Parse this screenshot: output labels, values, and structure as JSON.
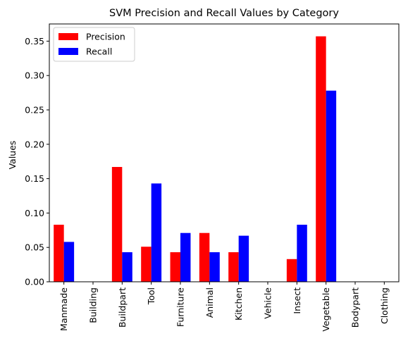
{
  "chart_data": {
    "type": "bar",
    "title": "SVM Precision and Recall Values by Category",
    "xlabel": "",
    "ylabel": "Values",
    "categories": [
      "Manmade",
      "Building",
      "Buildpart",
      "Tool",
      "Furniture",
      "Animal",
      "Kitchen",
      "Vehicle",
      "Insect",
      "Vegetable",
      "Bodypart",
      "Clothing"
    ],
    "series": [
      {
        "name": "Precision",
        "color": "#ff0000",
        "values": [
          0.083,
          0.0,
          0.167,
          0.051,
          0.043,
          0.071,
          0.043,
          0.0,
          0.033,
          0.357,
          0.0,
          0.0
        ]
      },
      {
        "name": "Recall",
        "color": "#0000ff",
        "values": [
          0.058,
          0.0,
          0.043,
          0.143,
          0.071,
          0.043,
          0.067,
          0.0,
          0.083,
          0.278,
          0.0,
          0.0
        ]
      }
    ],
    "ylim": [
      0,
      0.375
    ],
    "yticks": [
      "0.00",
      "0.05",
      "0.10",
      "0.15",
      "0.20",
      "0.25",
      "0.30",
      "0.35"
    ],
    "legend_position": "upper-left",
    "grid": false
  }
}
